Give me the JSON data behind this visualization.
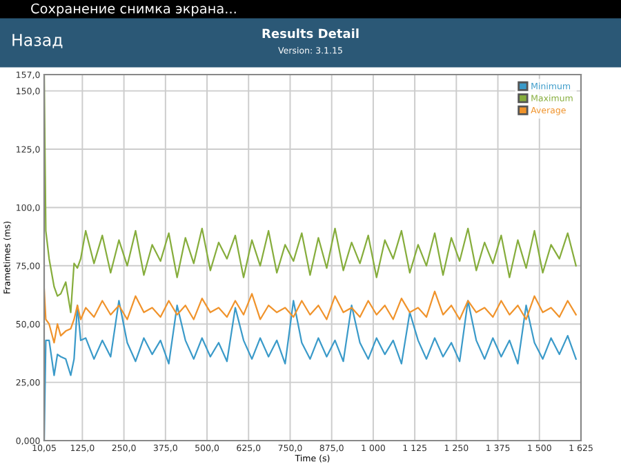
{
  "chart_data": {
    "type": "line",
    "title": "Results Detail",
    "subtitle": "Version: 3.1.15",
    "xlabel": "Time (s)",
    "ylabel": "Frametimes (ms)",
    "annotations": [
      "Сохранение снимка экрана...",
      "Назад"
    ],
    "x": [
      10.05,
      15,
      25,
      40,
      50,
      60,
      75,
      90,
      100,
      110,
      120,
      135,
      160,
      185,
      210,
      235,
      260,
      285,
      310,
      335,
      360,
      385,
      410,
      435,
      460,
      485,
      510,
      535,
      560,
      585,
      610,
      635,
      660,
      685,
      710,
      735,
      760,
      785,
      810,
      835,
      860,
      885,
      910,
      935,
      960,
      985,
      1010,
      1035,
      1060,
      1085,
      1110,
      1135,
      1160,
      1185,
      1210,
      1235,
      1260,
      1285,
      1310,
      1335,
      1360,
      1385,
      1410,
      1435,
      1460,
      1485,
      1510,
      1535,
      1560,
      1585,
      1610
    ],
    "series": [
      {
        "name": "Minimum",
        "color": "#3a9ac9",
        "values": [
          0,
          43,
          43,
          28,
          37,
          36,
          35,
          28,
          35,
          58,
          43,
          44,
          35,
          43,
          36,
          60,
          42,
          34,
          44,
          37,
          43,
          33,
          58,
          43,
          35,
          44,
          36,
          42,
          34,
          57,
          43,
          35,
          44,
          36,
          43,
          33,
          60,
          42,
          35,
          44,
          36,
          43,
          34,
          58,
          42,
          35,
          44,
          37,
          43,
          33,
          55,
          43,
          35,
          44,
          36,
          42,
          34,
          60,
          43,
          35,
          44,
          36,
          43,
          33,
          58,
          42,
          35,
          44,
          37,
          45,
          35
        ]
      },
      {
        "name": "Maximum",
        "color": "#86ad3c",
        "values": [
          157,
          90,
          78,
          66,
          62,
          63,
          68,
          55,
          76,
          74,
          78,
          90,
          76,
          88,
          72,
          86,
          75,
          90,
          71,
          84,
          77,
          89,
          70,
          87,
          76,
          91,
          73,
          85,
          78,
          88,
          70,
          86,
          75,
          90,
          72,
          84,
          77,
          89,
          71,
          87,
          74,
          91,
          73,
          85,
          76,
          88,
          70,
          86,
          78,
          90,
          72,
          84,
          75,
          89,
          71,
          87,
          77,
          91,
          73,
          85,
          76,
          88,
          70,
          86,
          74,
          90,
          72,
          84,
          78,
          89,
          75
        ]
      },
      {
        "name": "Average",
        "color": "#f0932b",
        "values": [
          65,
          52,
          50,
          42,
          50,
          45,
          47,
          48,
          52,
          58,
          52,
          57,
          53,
          60,
          54,
          58,
          52,
          62,
          55,
          57,
          53,
          60,
          54,
          58,
          52,
          61,
          55,
          57,
          53,
          60,
          54,
          63,
          52,
          58,
          55,
          57,
          53,
          60,
          54,
          58,
          52,
          62,
          55,
          57,
          53,
          60,
          54,
          58,
          52,
          61,
          55,
          57,
          53,
          64,
          54,
          58,
          52,
          60,
          55,
          57,
          53,
          60,
          54,
          58,
          52,
          62,
          55,
          57,
          53,
          60,
          54
        ]
      }
    ],
    "xlim": [
      10.05,
      1625
    ],
    "xticks": [
      {
        "value": 10.05,
        "label": "10,05"
      },
      {
        "value": 125,
        "label": "125,0"
      },
      {
        "value": 250,
        "label": "250,0"
      },
      {
        "value": 375,
        "label": "375,0"
      },
      {
        "value": 500,
        "label": "500,0"
      },
      {
        "value": 625,
        "label": "625,0"
      },
      {
        "value": 750,
        "label": "750,0"
      },
      {
        "value": 875,
        "label": "875,0"
      },
      {
        "value": 1000,
        "label": "1 000"
      },
      {
        "value": 1125,
        "label": "1 125"
      },
      {
        "value": 1250,
        "label": "1 250"
      },
      {
        "value": 1375,
        "label": "1 375"
      },
      {
        "value": 1500,
        "label": "1 500"
      },
      {
        "value": 1625,
        "label": "1 625"
      }
    ],
    "ylim": [
      0,
      157
    ],
    "yticks": [
      {
        "value": 0,
        "label": "0,000"
      },
      {
        "value": 25,
        "label": "25,00"
      },
      {
        "value": 50,
        "label": "50,00"
      },
      {
        "value": 75,
        "label": "75,00"
      },
      {
        "value": 100,
        "label": "100,0"
      },
      {
        "value": 125,
        "label": "125,0"
      },
      {
        "value": 150,
        "label": "150,0"
      },
      {
        "value": 157,
        "label": "157,0"
      }
    ],
    "grid": true,
    "legend": "top right",
    "marker": "none",
    "line_style": "solid"
  }
}
